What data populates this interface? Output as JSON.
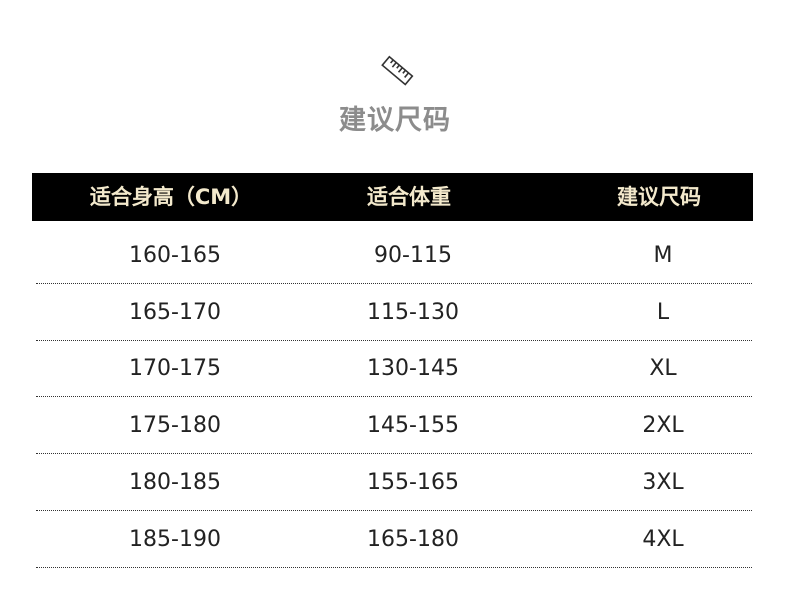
{
  "title": "建议尺码",
  "icon": "ruler-icon",
  "colors": {
    "header_bg": "#000000",
    "header_text": "#f3e9cc",
    "title": "#8c8c8c"
  },
  "table": {
    "headers": [
      "适合身高（CM）",
      "适合体重",
      "建议尺码"
    ],
    "rows": [
      [
        "160-165",
        "90-115",
        "M"
      ],
      [
        "165-170",
        "115-130",
        "L"
      ],
      [
        "170-175",
        "130-145",
        "XL"
      ],
      [
        "175-180",
        "145-155",
        "2XL"
      ],
      [
        "180-185",
        "155-165",
        "3XL"
      ],
      [
        "185-190",
        "165-180",
        "4XL"
      ]
    ]
  }
}
